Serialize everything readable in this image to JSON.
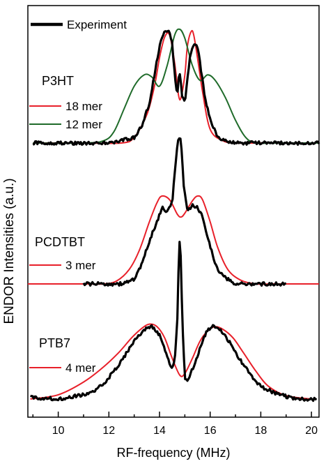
{
  "chart_data": {
    "type": "line",
    "xlabel": "RF-frequency (MHz)",
    "ylabel": "ENDOR Intensities (a.u.)",
    "xlim": [
      8.8,
      20.3
    ],
    "xticks": [
      10,
      12,
      14,
      16,
      18,
      20
    ],
    "legend": {
      "label": "Experiment",
      "color": "#000000",
      "placement": "top-left"
    },
    "panels": [
      {
        "name": "P3HT",
        "series": [
          {
            "name": "Experiment",
            "color": "#000000",
            "kind": "experiment",
            "x": [
              9.0,
              11.0,
              12.0,
              12.5,
              13.0,
              13.3,
              13.6,
              13.8,
              14.0,
              14.2,
              14.35,
              14.5,
              14.6,
              14.7,
              14.75,
              14.8,
              14.9,
              15.0,
              15.1,
              15.2,
              15.3,
              15.4,
              15.5,
              15.6,
              15.8,
              16.0,
              16.3,
              16.6,
              17.0,
              17.5,
              18.0,
              19.0,
              20.3
            ],
            "y": [
              0.0,
              0.0,
              0.0,
              0.02,
              0.05,
              0.15,
              0.35,
              0.6,
              0.85,
              0.98,
              1.0,
              0.88,
              0.6,
              0.42,
              0.55,
              0.62,
              0.4,
              0.35,
              0.55,
              0.75,
              0.85,
              0.88,
              0.85,
              0.7,
              0.4,
              0.2,
              0.05,
              0.02,
              0.0,
              0.0,
              0.0,
              0.0,
              0.0
            ]
          },
          {
            "name": "18 mer",
            "color": "#e8202a",
            "kind": "fit",
            "x": [
              9.0,
              11.0,
              12.5,
              13.0,
              13.5,
              13.8,
              14.0,
              14.2,
              14.4,
              14.6,
              14.75,
              14.85,
              15.0,
              15.1,
              15.25,
              15.35,
              15.5,
              15.7,
              16.0,
              16.5,
              17.0,
              18.0,
              20.3
            ],
            "y": [
              0.0,
              0.0,
              0.0,
              0.05,
              0.25,
              0.5,
              0.75,
              0.93,
              0.95,
              0.7,
              0.42,
              0.4,
              0.6,
              0.85,
              0.98,
              0.95,
              0.75,
              0.45,
              0.12,
              0.02,
              0.0,
              0.0,
              0.0
            ]
          },
          {
            "name": "12 mer",
            "color": "#1f6b2a",
            "kind": "fit",
            "x": [
              9.0,
              11.0,
              11.8,
              12.2,
              12.6,
              13.0,
              13.4,
              13.7,
              14.0,
              14.3,
              14.6,
              14.8,
              15.0,
              15.3,
              15.6,
              15.9,
              16.2,
              16.6,
              17.0,
              17.4,
              17.8,
              18.5,
              20.3
            ],
            "y": [
              0.0,
              0.0,
              0.02,
              0.1,
              0.3,
              0.5,
              0.6,
              0.58,
              0.5,
              0.68,
              0.95,
              1.0,
              0.92,
              0.68,
              0.55,
              0.6,
              0.55,
              0.4,
              0.2,
              0.05,
              0.0,
              0.0,
              0.0
            ]
          }
        ]
      },
      {
        "name": "PCDTBT",
        "series": [
          {
            "name": "Experiment",
            "color": "#000000",
            "kind": "experiment",
            "x": [
              11.0,
              12.5,
              13.0,
              13.3,
              13.6,
              13.9,
              14.1,
              14.3,
              14.5,
              14.65,
              14.75,
              14.85,
              14.95,
              15.1,
              15.3,
              15.5,
              15.7,
              15.9,
              16.2,
              16.5,
              17.0,
              17.5,
              18.0,
              19.0
            ],
            "y": [
              0.0,
              0.0,
              0.05,
              0.2,
              0.45,
              0.65,
              0.8,
              0.75,
              0.85,
              1.3,
              1.55,
              1.5,
              1.05,
              0.75,
              0.82,
              0.8,
              0.7,
              0.5,
              0.2,
              0.08,
              0.0,
              0.0,
              0.0,
              0.0
            ]
          },
          {
            "name": "3 mer",
            "color": "#e8202a",
            "kind": "fit",
            "x": [
              8.8,
              11.0,
              11.8,
              12.3,
              12.8,
              13.2,
              13.6,
              13.9,
              14.1,
              14.4,
              14.7,
              14.85,
              15.0,
              15.3,
              15.5,
              15.7,
              16.0,
              16.3,
              16.7,
              17.2,
              17.8,
              18.5,
              20.3
            ],
            "y": [
              0.0,
              0.0,
              0.0,
              0.03,
              0.15,
              0.35,
              0.65,
              0.85,
              0.92,
              0.88,
              0.73,
              0.7,
              0.74,
              0.87,
              0.92,
              0.88,
              0.65,
              0.38,
              0.15,
              0.04,
              0.0,
              0.0,
              0.0
            ]
          }
        ]
      },
      {
        "name": "PTB7",
        "series": [
          {
            "name": "Experiment",
            "color": "#000000",
            "kind": "experiment",
            "x": [
              8.9,
              10.0,
              11.0,
              11.5,
              12.0,
              12.5,
              13.0,
              13.4,
              13.7,
              14.0,
              14.3,
              14.5,
              14.6,
              14.7,
              14.75,
              14.8,
              14.85,
              14.9,
              15.0,
              15.1,
              15.3,
              15.6,
              15.9,
              16.1,
              16.4,
              16.8,
              17.2,
              17.6,
              18.0,
              18.5,
              19.0,
              19.5,
              20.2
            ],
            "y": [
              0.02,
              0.0,
              0.05,
              0.1,
              0.25,
              0.45,
              0.68,
              0.82,
              0.85,
              0.75,
              0.5,
              0.35,
              0.45,
              0.9,
              1.5,
              1.9,
              1.6,
              0.9,
              0.25,
              0.2,
              0.35,
              0.6,
              0.82,
              0.85,
              0.82,
              0.65,
              0.45,
              0.28,
              0.15,
              0.08,
              0.03,
              0.0,
              0.0
            ]
          },
          {
            "name": "4 mer",
            "color": "#e8202a",
            "kind": "fit",
            "x": [
              8.9,
              10.0,
              11.0,
              11.8,
              12.4,
              12.9,
              13.3,
              13.6,
              13.9,
              14.2,
              14.5,
              14.8,
              15.0,
              15.3,
              15.6,
              15.9,
              16.2,
              16.5,
              16.9,
              17.3,
              17.8,
              18.3,
              19.0,
              20.0
            ],
            "y": [
              0.0,
              0.05,
              0.2,
              0.38,
              0.55,
              0.72,
              0.83,
              0.88,
              0.85,
              0.72,
              0.48,
              0.28,
              0.3,
              0.48,
              0.68,
              0.8,
              0.85,
              0.82,
              0.72,
              0.55,
              0.33,
              0.15,
              0.04,
              0.0
            ]
          }
        ]
      }
    ]
  }
}
